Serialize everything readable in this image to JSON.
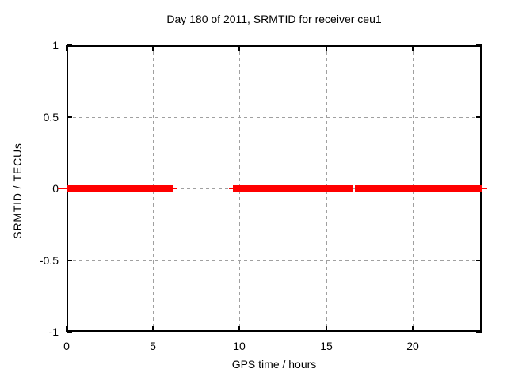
{
  "figure": {
    "background": "#ffffff"
  },
  "chart_data": {
    "type": "line",
    "title": "Day 180 of 2011, SRMTID for receiver ceu1",
    "xlabel": "GPS time / hours",
    "ylabel": "SRMTID / TECUs",
    "xlim": [
      0,
      24
    ],
    "ylim": [
      -1,
      1
    ],
    "xticks": [
      0,
      5,
      10,
      15,
      20
    ],
    "yticks": [
      -1,
      -0.5,
      0,
      0.5,
      1
    ],
    "grid": true,
    "legend": "none",
    "colors": {
      "series": "#ff0000",
      "grid": "#a0a0a0",
      "axis": "#000000",
      "text": "#000000",
      "background": "#ffffff"
    },
    "series": [
      {
        "name": "SRMTID",
        "color": "#ff0000",
        "segments": [
          {
            "x_start": 0,
            "x_end": 6.2,
            "y": 0
          },
          {
            "x_start": 9.6,
            "x_end": 16.55,
            "y": 0
          },
          {
            "x_start": 16.65,
            "x_end": 24,
            "y": 0
          }
        ]
      }
    ]
  }
}
